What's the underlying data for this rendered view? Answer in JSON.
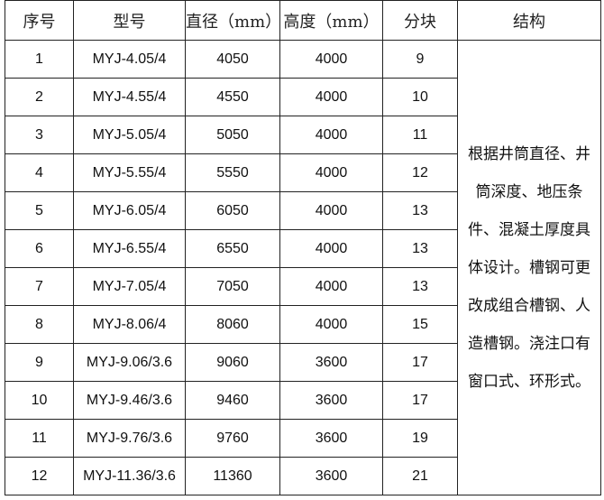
{
  "headers": [
    "序号",
    "型号",
    "直径（mm）",
    "高度（mm）",
    "分块",
    "结构"
  ],
  "rows": [
    [
      "1",
      "MYJ-4.05/4",
      "4050",
      "4000",
      "9"
    ],
    [
      "2",
      "MYJ-4.55/4",
      "4550",
      "4000",
      "10"
    ],
    [
      "3",
      "MYJ-5.05/4",
      "5050",
      "4000",
      "11"
    ],
    [
      "4",
      "MYJ-5.55/4",
      "5550",
      "4000",
      "12"
    ],
    [
      "5",
      "MYJ-6.05/4",
      "6050",
      "4000",
      "13"
    ],
    [
      "6",
      "MYJ-6.55/4",
      "6550",
      "4000",
      "13"
    ],
    [
      "7",
      "MYJ-7.05/4",
      "7050",
      "4000",
      "13"
    ],
    [
      "8",
      "MYJ-8.06/4",
      "8060",
      "4000",
      "15"
    ],
    [
      "9",
      "MYJ-9.06/3.6",
      "9060",
      "3600",
      "17"
    ],
    [
      "10",
      "MYJ-9.46/3.6",
      "9460",
      "3600",
      "17"
    ],
    [
      "11",
      "MYJ-9.76/3.6",
      "9760",
      "3600",
      "19"
    ],
    [
      "12",
      "MYJ-11.36/3.6",
      "11360",
      "3600",
      "21"
    ]
  ],
  "structure_note": "根据井筒直径、井筒深度、地压条件、混凝土厚度具体设计。槽钢可更改成组合槽钢、人造槽钢。浇注口有窗口式、环形式。"
}
